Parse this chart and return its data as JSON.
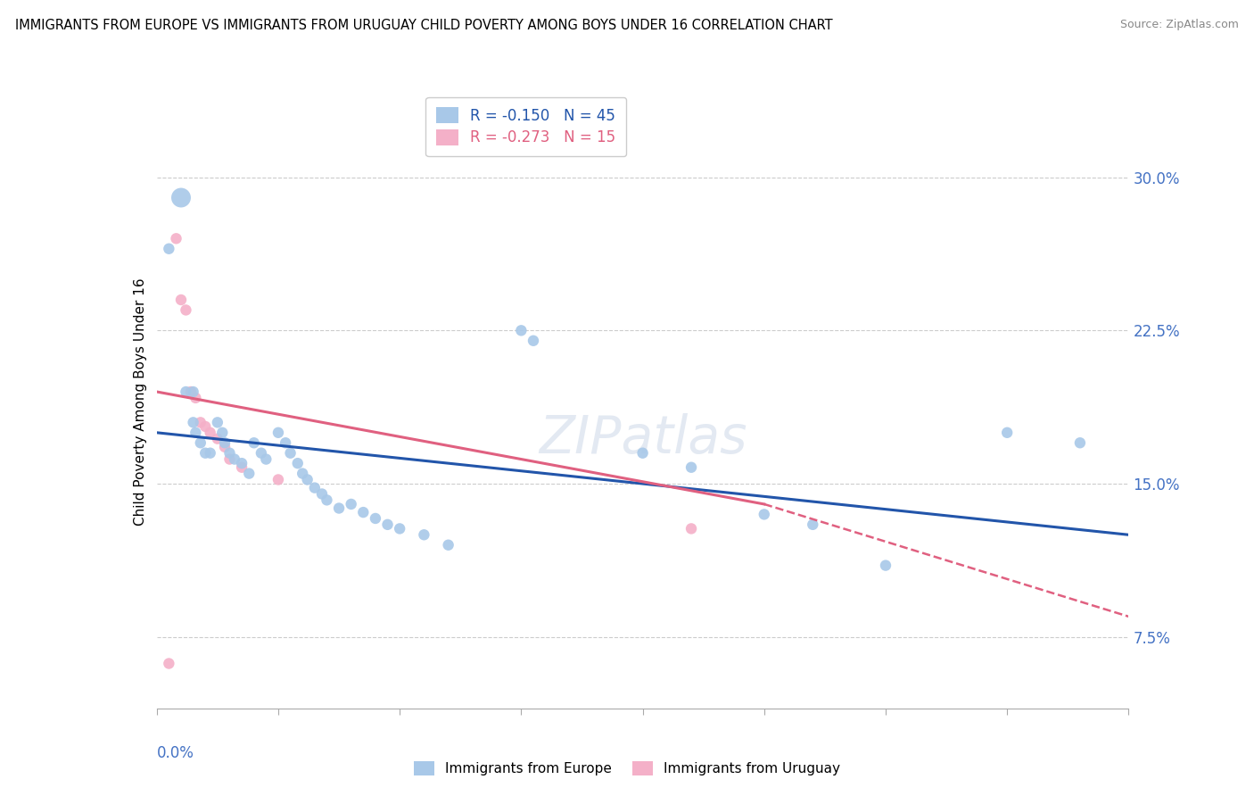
{
  "title": "IMMIGRANTS FROM EUROPE VS IMMIGRANTS FROM URUGUAY CHILD POVERTY AMONG BOYS UNDER 16 CORRELATION CHART",
  "source": "Source: ZipAtlas.com",
  "ylabel": "Child Poverty Among Boys Under 16",
  "ytick_labels": [
    "7.5%",
    "15.0%",
    "22.5%",
    "30.0%"
  ],
  "ytick_values": [
    0.075,
    0.15,
    0.225,
    0.3
  ],
  "xlim": [
    0.0,
    0.4
  ],
  "ylim": [
    0.04,
    0.34
  ],
  "legend_europe": "R = -0.150   N = 45",
  "legend_uruguay": "R = -0.273   N = 15",
  "europe_color": "#a8c8e8",
  "uruguay_color": "#f4b0c8",
  "europe_line_color": "#2255aa",
  "uruguay_line_color": "#e06080",
  "watermark": "ZIPatlas",
  "blue_dots": [
    [
      0.005,
      0.265
    ],
    [
      0.01,
      0.29
    ],
    [
      0.012,
      0.195
    ],
    [
      0.015,
      0.195
    ],
    [
      0.015,
      0.18
    ],
    [
      0.016,
      0.175
    ],
    [
      0.018,
      0.17
    ],
    [
      0.02,
      0.165
    ],
    [
      0.022,
      0.165
    ],
    [
      0.025,
      0.18
    ],
    [
      0.027,
      0.175
    ],
    [
      0.028,
      0.17
    ],
    [
      0.03,
      0.165
    ],
    [
      0.032,
      0.162
    ],
    [
      0.035,
      0.16
    ],
    [
      0.038,
      0.155
    ],
    [
      0.04,
      0.17
    ],
    [
      0.043,
      0.165
    ],
    [
      0.045,
      0.162
    ],
    [
      0.05,
      0.175
    ],
    [
      0.053,
      0.17
    ],
    [
      0.055,
      0.165
    ],
    [
      0.058,
      0.16
    ],
    [
      0.06,
      0.155
    ],
    [
      0.062,
      0.152
    ],
    [
      0.065,
      0.148
    ],
    [
      0.068,
      0.145
    ],
    [
      0.07,
      0.142
    ],
    [
      0.075,
      0.138
    ],
    [
      0.08,
      0.14
    ],
    [
      0.085,
      0.136
    ],
    [
      0.09,
      0.133
    ],
    [
      0.095,
      0.13
    ],
    [
      0.1,
      0.128
    ],
    [
      0.11,
      0.125
    ],
    [
      0.12,
      0.12
    ],
    [
      0.15,
      0.225
    ],
    [
      0.155,
      0.22
    ],
    [
      0.2,
      0.165
    ],
    [
      0.22,
      0.158
    ],
    [
      0.25,
      0.135
    ],
    [
      0.27,
      0.13
    ],
    [
      0.3,
      0.11
    ],
    [
      0.35,
      0.175
    ],
    [
      0.38,
      0.17
    ]
  ],
  "blue_sizes": [
    80,
    250,
    80,
    80,
    80,
    80,
    80,
    80,
    80,
    80,
    80,
    80,
    80,
    80,
    80,
    80,
    80,
    80,
    80,
    80,
    80,
    80,
    80,
    80,
    80,
    80,
    80,
    80,
    80,
    80,
    80,
    80,
    80,
    80,
    80,
    80,
    80,
    80,
    80,
    80,
    80,
    80,
    80,
    80,
    80
  ],
  "pink_dots": [
    [
      0.008,
      0.27
    ],
    [
      0.01,
      0.24
    ],
    [
      0.012,
      0.235
    ],
    [
      0.014,
      0.195
    ],
    [
      0.016,
      0.192
    ],
    [
      0.018,
      0.18
    ],
    [
      0.02,
      0.178
    ],
    [
      0.022,
      0.175
    ],
    [
      0.025,
      0.172
    ],
    [
      0.028,
      0.168
    ],
    [
      0.03,
      0.162
    ],
    [
      0.035,
      0.158
    ],
    [
      0.05,
      0.152
    ],
    [
      0.22,
      0.128
    ],
    [
      0.005,
      0.062
    ]
  ],
  "pink_sizes": [
    80,
    80,
    80,
    80,
    80,
    80,
    80,
    80,
    80,
    80,
    80,
    80,
    80,
    80,
    80
  ]
}
